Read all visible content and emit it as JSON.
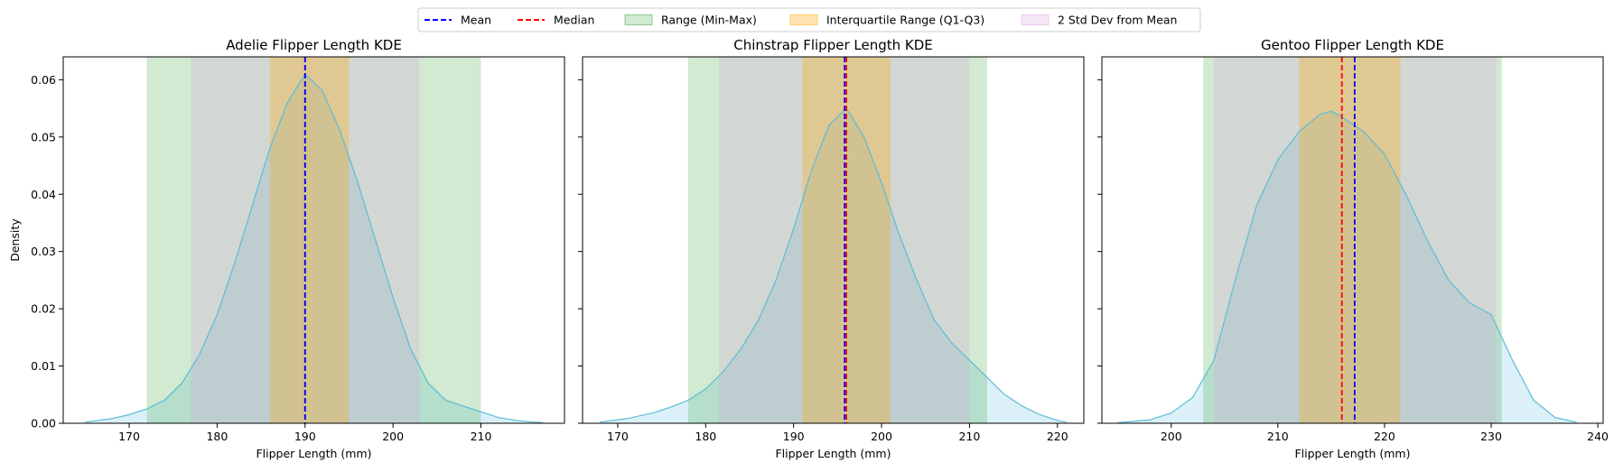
{
  "legend": {
    "placement": "top-center",
    "entries": [
      {
        "label": "Mean",
        "kind": "line",
        "color": "#0000ff",
        "dash": true
      },
      {
        "label": "Median",
        "kind": "line",
        "color": "#ff0000",
        "dash": true
      },
      {
        "label": "Range (Min-Max)",
        "kind": "patch",
        "color": "#2ca02c",
        "opacity": 0.22
      },
      {
        "label": "Interquartile Range (Q1-Q3)",
        "kind": "patch",
        "color": "#ffa500",
        "opacity": 0.3
      },
      {
        "label": "2 Std Dev from Mean",
        "kind": "patch",
        "color": "#dda0dd",
        "opacity": 0.25
      }
    ]
  },
  "colors": {
    "kde_fill": "#87ceeb",
    "kde_line": "#5bbcd6",
    "range": "#2ca02c",
    "iqr": "#ffa500",
    "std": "#dda0dd",
    "mean": "#0000ff",
    "median": "#ff0000"
  },
  "chart_data": [
    {
      "type": "area",
      "title": "Adelie Flipper Length KDE",
      "xlabel": "Flipper Length (mm)",
      "ylabel": "Density",
      "xlim": [
        162.5,
        219.5
      ],
      "ylim": [
        0,
        0.064
      ],
      "xticks": [
        170,
        180,
        190,
        200,
        210
      ],
      "yticks": [
        0.0,
        0.01,
        0.02,
        0.03,
        0.04,
        0.05,
        0.06
      ],
      "ytick_labels": [
        "0.00",
        "0.01",
        "0.02",
        "0.03",
        "0.04",
        "0.05",
        "0.06"
      ],
      "range": [
        172,
        210
      ],
      "iqr": [
        186,
        195
      ],
      "std2": [
        177,
        203
      ],
      "mean": 190,
      "median": 190,
      "kde": {
        "x": [
          165,
          168,
          170,
          172,
          174,
          176,
          178,
          180,
          182,
          184,
          186,
          188,
          190,
          192,
          194,
          196,
          198,
          200,
          202,
          204,
          206,
          208,
          210,
          212,
          214,
          216,
          217
        ],
        "y": [
          0.0002,
          0.0008,
          0.0015,
          0.0025,
          0.004,
          0.007,
          0.012,
          0.019,
          0.028,
          0.038,
          0.048,
          0.056,
          0.061,
          0.058,
          0.051,
          0.042,
          0.032,
          0.022,
          0.013,
          0.007,
          0.004,
          0.003,
          0.002,
          0.001,
          0.0005,
          0.0002,
          0.0001
        ]
      }
    },
    {
      "type": "area",
      "title": "Chinstrap Flipper Length KDE",
      "xlabel": "Flipper Length (mm)",
      "ylabel": "",
      "xlim": [
        166,
        223
      ],
      "ylim": [
        0,
        0.064
      ],
      "xticks": [
        170,
        180,
        190,
        200,
        210,
        220
      ],
      "yticks": [
        0.0,
        0.01,
        0.02,
        0.03,
        0.04,
        0.05,
        0.06
      ],
      "ytick_labels": [],
      "range": [
        178,
        212
      ],
      "iqr": [
        191,
        201
      ],
      "std2": [
        181.5,
        210
      ],
      "mean": 195.8,
      "median": 196,
      "kde": {
        "x": [
          168,
          171,
          174,
          176,
          178,
          180,
          182,
          184,
          186,
          188,
          190,
          192,
          194,
          196,
          198,
          200,
          202,
          204,
          206,
          208,
          210,
          212,
          214,
          216,
          218,
          220,
          221
        ],
        "y": [
          0.0002,
          0.0008,
          0.0018,
          0.0028,
          0.004,
          0.006,
          0.009,
          0.013,
          0.018,
          0.025,
          0.034,
          0.044,
          0.052,
          0.055,
          0.05,
          0.042,
          0.033,
          0.025,
          0.018,
          0.014,
          0.011,
          0.008,
          0.005,
          0.003,
          0.0015,
          0.0005,
          0.0002
        ]
      }
    },
    {
      "type": "area",
      "title": "Gentoo Flipper Length KDE",
      "xlabel": "Flipper Length (mm)",
      "ylabel": "",
      "xlim": [
        193.5,
        240.5
      ],
      "ylim": [
        0,
        0.064
      ],
      "xticks": [
        200,
        210,
        220,
        230,
        240
      ],
      "yticks": [
        0.0,
        0.01,
        0.02,
        0.03,
        0.04,
        0.05,
        0.06
      ],
      "ytick_labels": [],
      "range": [
        203,
        231
      ],
      "iqr": [
        212,
        221.5
      ],
      "std2": [
        204,
        230.5
      ],
      "mean": 217.2,
      "median": 216,
      "kde": {
        "x": [
          195,
          198,
          200,
          202,
          204,
          206,
          208,
          210,
          212,
          214,
          215,
          216,
          218,
          220,
          222,
          224,
          226,
          228,
          230,
          232,
          234,
          236,
          238
        ],
        "y": [
          0.0001,
          0.0006,
          0.0018,
          0.0045,
          0.011,
          0.025,
          0.038,
          0.046,
          0.051,
          0.054,
          0.0545,
          0.0535,
          0.051,
          0.047,
          0.04,
          0.032,
          0.025,
          0.021,
          0.019,
          0.011,
          0.004,
          0.001,
          0.0002
        ]
      }
    }
  ]
}
